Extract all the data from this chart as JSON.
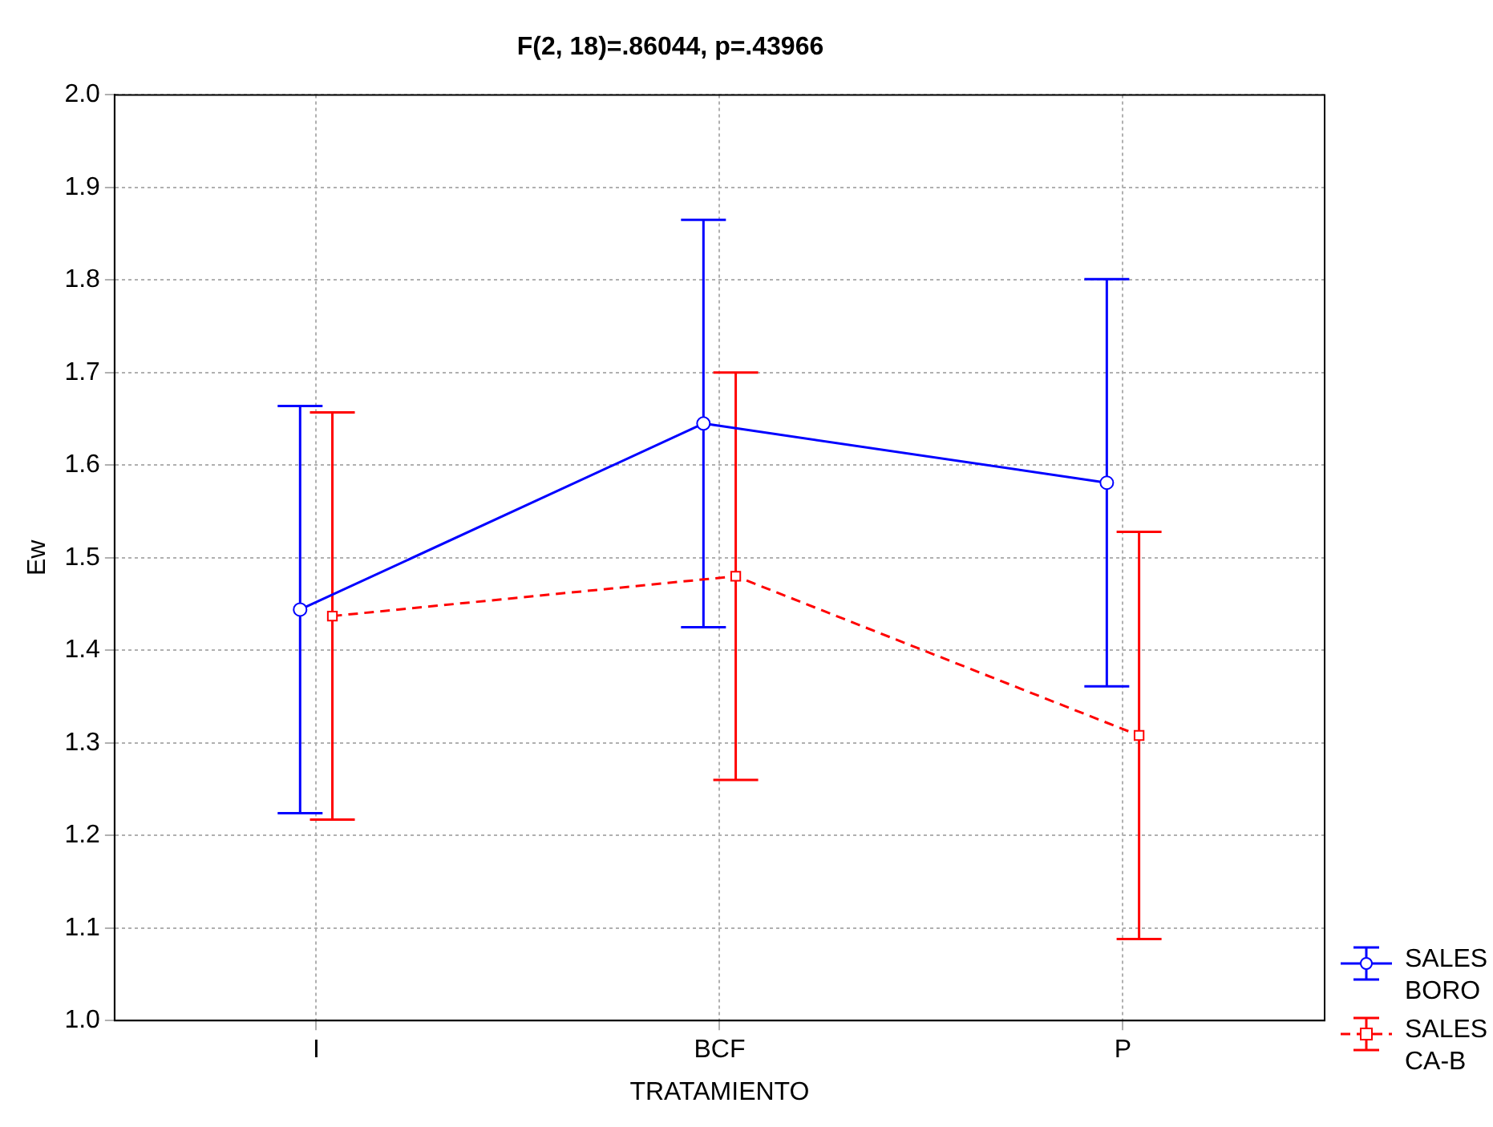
{
  "chart_data": {
    "type": "line",
    "title": "F(2, 18)=.86044, p=.43966",
    "xlabel": "TRATAMIENTO",
    "ylabel": "Ew",
    "categories": [
      "I",
      "BCF",
      "P"
    ],
    "series": [
      {
        "name": "SALES BORO",
        "color": "#0000ff",
        "values": [
          1.444,
          1.645,
          1.581
        ],
        "errors": [
          0.22,
          0.22,
          0.22
        ],
        "marker": "circle",
        "line_style": "solid"
      },
      {
        "name": "SALES CA-B",
        "color": "#ff0000",
        "values": [
          1.437,
          1.48,
          1.308
        ],
        "errors": [
          0.22,
          0.22,
          0.22
        ],
        "marker": "square",
        "line_style": "dashed"
      }
    ],
    "ylim": [
      1.0,
      2.0
    ],
    "yticks": [
      {
        "value": 1.0,
        "label": "1.0"
      },
      {
        "value": 1.1,
        "label": "1.1"
      },
      {
        "value": 1.2,
        "label": "1.2"
      },
      {
        "value": 1.3,
        "label": "1.3"
      },
      {
        "value": 1.4,
        "label": "1.4"
      },
      {
        "value": 1.5,
        "label": "1.5"
      },
      {
        "value": 1.6,
        "label": "1.6"
      },
      {
        "value": 1.7,
        "label": "1.7"
      },
      {
        "value": 1.8,
        "label": "1.8"
      },
      {
        "value": 1.9,
        "label": "1.9"
      },
      {
        "value": 2.0,
        "label": "2.0"
      }
    ],
    "grid": true,
    "legend": "bottom right"
  }
}
